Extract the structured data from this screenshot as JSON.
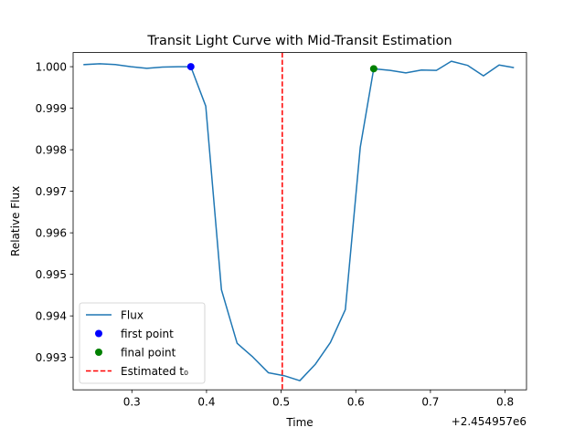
{
  "chart_data": {
    "type": "line",
    "title": "Transit Light Curve with Mid-Transit Estimation",
    "xlabel": "Time",
    "ylabel": "Relative Flux",
    "x_offset_label": "+2.454957e6",
    "xlim": [
      0.2213,
      0.8287
    ],
    "ylim": [
      0.99222,
      1.00034
    ],
    "xticks": [
      0.3,
      0.4,
      0.5,
      0.6,
      0.7,
      0.8
    ],
    "xtick_labels": [
      "0.3",
      "0.4",
      "0.5",
      "0.6",
      "0.7",
      "0.8"
    ],
    "yticks": [
      0.993,
      0.994,
      0.995,
      0.996,
      0.997,
      0.998,
      0.999,
      1.0
    ],
    "ytick_labels": [
      "0.993",
      "0.994",
      "0.995",
      "0.996",
      "0.997",
      "0.998",
      "0.999",
      "1.000"
    ],
    "grid": false,
    "legend_position": "lower-left",
    "series": [
      {
        "name": "Flux",
        "style": "line",
        "color": "#1f77b4",
        "x": [
          0.236,
          0.257,
          0.278,
          0.299,
          0.32,
          0.341,
          0.362,
          0.379,
          0.399,
          0.42,
          0.441,
          0.462,
          0.483,
          0.504,
          0.525,
          0.546,
          0.566,
          0.586,
          0.606,
          0.624,
          0.646,
          0.667,
          0.688,
          0.708,
          0.728,
          0.75,
          0.771,
          0.792,
          0.811
        ],
        "y": [
          1.00005,
          1.00007,
          1.00005,
          1.0,
          0.99996,
          0.99999,
          1.0,
          1.0,
          0.99905,
          0.99463,
          0.99334,
          0.99301,
          0.99263,
          0.99256,
          0.99244,
          0.99284,
          0.99336,
          0.99415,
          0.99806,
          0.99995,
          0.99991,
          0.99985,
          0.99992,
          0.99991,
          1.00013,
          1.00003,
          0.99978,
          1.00004,
          0.99998
        ]
      },
      {
        "name": "first point",
        "style": "marker",
        "color": "#0000ff",
        "x": [
          0.379
        ],
        "y": [
          1.0
        ]
      },
      {
        "name": "final point",
        "style": "marker",
        "color": "#008000",
        "x": [
          0.624
        ],
        "y": [
          0.99995
        ]
      },
      {
        "name": "Estimated t₀",
        "style": "vline",
        "color": "#ff0000",
        "x": [
          0.5015
        ]
      }
    ]
  }
}
